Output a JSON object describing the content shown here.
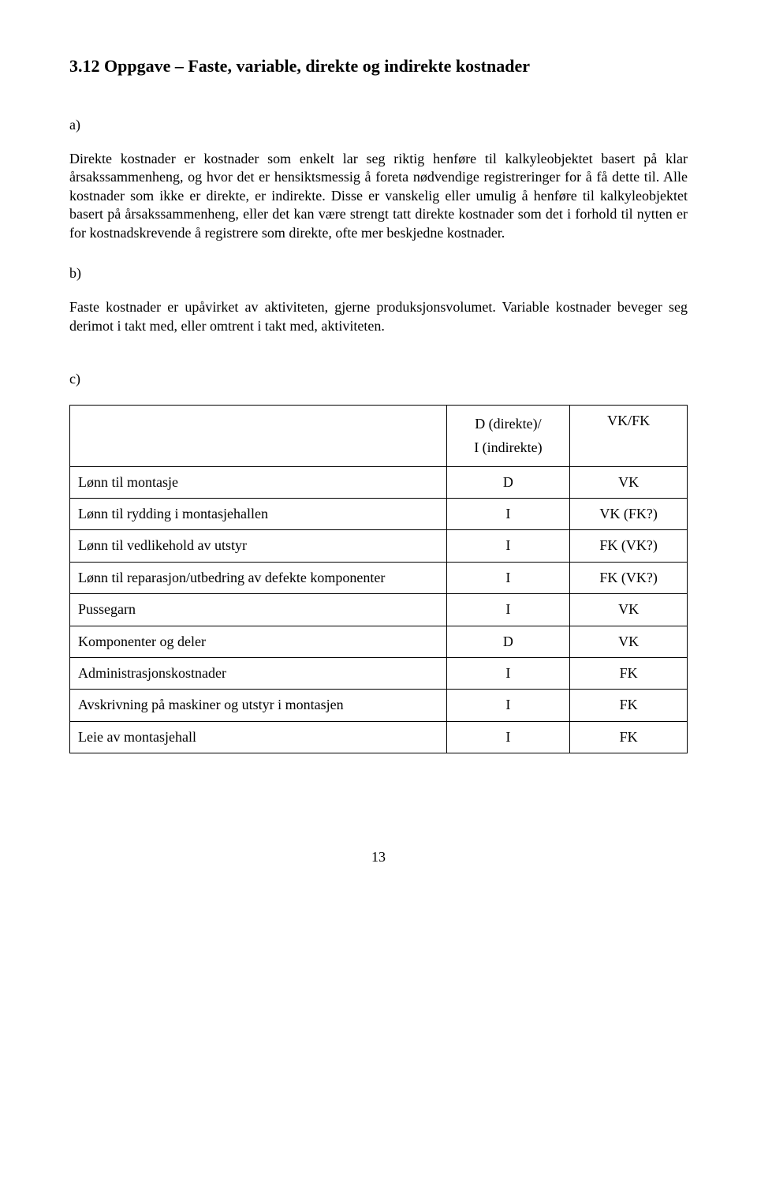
{
  "title": "3.12  Oppgave – Faste, variable, direkte og indirekte kostnader",
  "section_a": {
    "label": "a)",
    "text": "Direkte kostnader er kostnader som enkelt lar seg riktig henføre til kalkyleobjektet basert på klar årsakssammenheng, og hvor det er hensiktsmessig å foreta nødvendige registreringer for å få dette til. Alle kostnader som ikke er direkte, er indirekte. Disse er vanskelig eller umulig å henføre til kalkyleobjektet basert på årsakssammenheng, eller det kan være strengt tatt direkte kostnader som det i forhold til nytten er for kostnadskrevende å registrere som direkte, ofte mer beskjedne kostnader."
  },
  "section_b": {
    "label": "b)",
    "text": "Faste kostnader er upåvirket av aktiviteten, gjerne produksjonsvolumet. Variable kostnader beveger seg derimot i takt med, eller omtrent i takt med, aktiviteten."
  },
  "section_c": {
    "label": "c)",
    "table": {
      "header": {
        "col2_top": "D (direkte)/",
        "col2_bottom": "I (indirekte)",
        "col3": "VK/FK"
      },
      "rows": [
        {
          "label": "Lønn til montasje",
          "c2": "D",
          "c3": "VK"
        },
        {
          "label": "Lønn til rydding i montasjehallen",
          "c2": "I",
          "c3": "VK (FK?)"
        },
        {
          "label": "Lønn til vedlikehold av utstyr",
          "c2": "I",
          "c3": "FK (VK?)"
        },
        {
          "label": "Lønn til reparasjon/utbedring av defekte komponenter",
          "c2": "I",
          "c3": "FK (VK?)"
        },
        {
          "label": "Pussegarn",
          "c2": "I",
          "c3": "VK"
        },
        {
          "label": "Komponenter og deler",
          "c2": "D",
          "c3": "VK"
        },
        {
          "label": "Administrasjonskostnader",
          "c2": "I",
          "c3": "FK"
        },
        {
          "label": "Avskrivning på maskiner og utstyr i montasjen",
          "c2": "I",
          "c3": "FK"
        },
        {
          "label": "Leie av montasjehall",
          "c2": "I",
          "c3": "FK"
        }
      ]
    }
  },
  "page_number": "13"
}
